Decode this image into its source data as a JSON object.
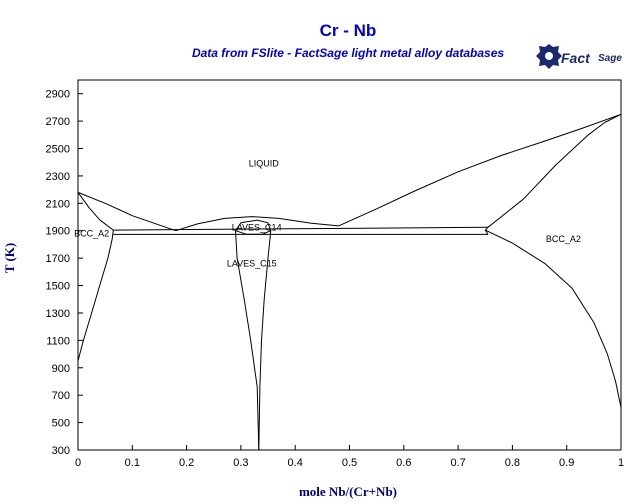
{
  "chart_data": {
    "type": "line",
    "title": "Cr - Nb",
    "subtitle": "Data from FSlite - FactSage light metal alloy databases",
    "xlabel": "mole Nb/(Cr+Nb)",
    "ylabel": "T (K)",
    "xlim": [
      0,
      1
    ],
    "ylim": [
      300,
      3000
    ],
    "xticks": [
      "0",
      "0.1",
      "0.2",
      "0.3",
      "0.4",
      "0.5",
      "0.6",
      "0.7",
      "0.8",
      "0.9",
      "1"
    ],
    "yticks": [
      "300",
      "500",
      "700",
      "900",
      "1100",
      "1300",
      "1500",
      "1700",
      "1900",
      "2100",
      "2300",
      "2500",
      "2700",
      "2900"
    ],
    "grid": false,
    "phase_labels": [
      {
        "text": "LIQUID",
        "x": 0.342,
        "y": 2390
      },
      {
        "text": "BCC_A2",
        "x": 0.025,
        "y": 1880
      },
      {
        "text": "LAVES_C14",
        "x": 0.329,
        "y": 1925
      },
      {
        "text": "LAVES_C15",
        "x": 0.32,
        "y": 1660
      },
      {
        "text": "BCC_A2",
        "x": 0.894,
        "y": 1840
      }
    ],
    "series": [
      {
        "values": [
          [
            0,
            2180
          ],
          [
            0.05,
            2100
          ],
          [
            0.1,
            2010
          ],
          [
            0.18,
            1900
          ]
        ]
      },
      {
        "values": [
          [
            0,
            2180
          ],
          [
            0.02,
            2070
          ],
          [
            0.04,
            1980
          ],
          [
            0.065,
            1905
          ]
        ]
      },
      {
        "values": [
          [
            0.18,
            1900
          ],
          [
            0.22,
            1950
          ],
          [
            0.27,
            1990
          ],
          [
            0.32,
            2003
          ],
          [
            0.37,
            1990
          ],
          [
            0.43,
            1955
          ],
          [
            0.48,
            1935
          ]
        ]
      },
      {
        "values": [
          [
            0.48,
            1935
          ],
          [
            0.55,
            2060
          ],
          [
            0.62,
            2190
          ],
          [
            0.7,
            2330
          ],
          [
            0.78,
            2450
          ],
          [
            0.86,
            2555
          ],
          [
            0.93,
            2650
          ],
          [
            1.0,
            2750
          ]
        ]
      },
      {
        "values": [
          [
            0.755,
            1925
          ],
          [
            0.82,
            2130
          ],
          [
            0.88,
            2380
          ],
          [
            0.94,
            2600
          ],
          [
            0.97,
            2690
          ],
          [
            1.0,
            2750
          ]
        ]
      },
      {
        "values": [
          [
            0.065,
            1905
          ],
          [
            0.063,
            1840
          ],
          [
            0.055,
            1700
          ],
          [
            0.04,
            1500
          ],
          [
            0.025,
            1300
          ],
          [
            0.01,
            1100
          ],
          [
            0,
            950
          ]
        ]
      },
      {
        "values": [
          [
            0.75,
            1905
          ],
          [
            0.8,
            1810
          ],
          [
            0.86,
            1660
          ],
          [
            0.91,
            1480
          ],
          [
            0.95,
            1230
          ],
          [
            0.975,
            1000
          ],
          [
            0.99,
            800
          ],
          [
            1.0,
            610
          ]
        ]
      },
      {
        "values": [
          [
            0.065,
            1905
          ],
          [
            0.755,
            1925
          ]
        ]
      },
      {
        "values": [
          [
            0.065,
            1873
          ],
          [
            0.755,
            1873
          ]
        ]
      },
      {
        "values": [
          [
            0.755,
            1925
          ],
          [
            0.75,
            1905
          ],
          [
            0.755,
            1873
          ]
        ]
      },
      {
        "values": [
          [
            0.29,
            1900
          ],
          [
            0.3,
            1958
          ],
          [
            0.33,
            1978
          ],
          [
            0.35,
            1958
          ],
          [
            0.355,
            1900
          ],
          [
            0.34,
            1875
          ],
          [
            0.31,
            1875
          ],
          [
            0.29,
            1900
          ]
        ]
      },
      {
        "values": [
          [
            0.29,
            1900
          ],
          [
            0.293,
            1700
          ],
          [
            0.306,
            1400
          ],
          [
            0.318,
            1100
          ],
          [
            0.33,
            760
          ],
          [
            0.333,
            300
          ]
        ]
      },
      {
        "values": [
          [
            0.355,
            1900
          ],
          [
            0.35,
            1700
          ],
          [
            0.343,
            1400
          ],
          [
            0.338,
            1100
          ],
          [
            0.335,
            760
          ],
          [
            0.333,
            300
          ]
        ]
      }
    ]
  }
}
